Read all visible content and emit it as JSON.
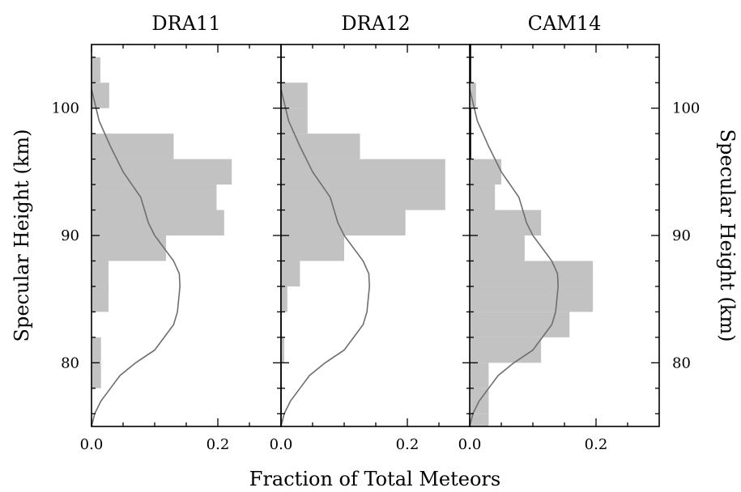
{
  "figure": {
    "xlabel": "Fraction of Total Meteors",
    "ylabel_left": "Specular Height (km)",
    "ylabel_right": "Specular Height (km)"
  },
  "chart_data": {
    "type": "bar",
    "orientation": "horizontal",
    "xlim": [
      0,
      0.3
    ],
    "ylim": [
      75,
      105
    ],
    "xticks": [
      0.0,
      0.2
    ],
    "xtick_labels": [
      "0.0",
      "0.2"
    ],
    "yticks": [
      80,
      90,
      100
    ],
    "ytick_labels": [
      "80",
      "90",
      "100"
    ],
    "bin_width_km": 2,
    "grid": false,
    "panels": [
      {
        "title": "DRA11",
        "histogram": [
          {
            "y0": 76,
            "y1": 78,
            "value": 0.0
          },
          {
            "y0": 78,
            "y1": 80,
            "value": 0.015
          },
          {
            "y0": 80,
            "y1": 82,
            "value": 0.015
          },
          {
            "y0": 82,
            "y1": 84,
            "value": 0.0
          },
          {
            "y0": 84,
            "y1": 86,
            "value": 0.027
          },
          {
            "y0": 86,
            "y1": 88,
            "value": 0.027
          },
          {
            "y0": 88,
            "y1": 90,
            "value": 0.118
          },
          {
            "y0": 90,
            "y1": 92,
            "value": 0.21
          },
          {
            "y0": 92,
            "y1": 94,
            "value": 0.198
          },
          {
            "y0": 94,
            "y1": 96,
            "value": 0.222
          },
          {
            "y0": 96,
            "y1": 98,
            "value": 0.13
          },
          {
            "y0": 98,
            "y1": 100,
            "value": 0.0
          },
          {
            "y0": 100,
            "y1": 102,
            "value": 0.028
          },
          {
            "y0": 102,
            "y1": 104,
            "value": 0.014
          }
        ],
        "model_curve": [
          {
            "x": 0.0,
            "y": 75
          },
          {
            "x": 0.005,
            "y": 76
          },
          {
            "x": 0.015,
            "y": 77
          },
          {
            "x": 0.03,
            "y": 78
          },
          {
            "x": 0.045,
            "y": 79
          },
          {
            "x": 0.07,
            "y": 80
          },
          {
            "x": 0.1,
            "y": 81
          },
          {
            "x": 0.13,
            "y": 83
          },
          {
            "x": 0.136,
            "y": 84
          },
          {
            "x": 0.14,
            "y": 86
          },
          {
            "x": 0.139,
            "y": 87
          },
          {
            "x": 0.13,
            "y": 88
          },
          {
            "x": 0.1,
            "y": 90
          },
          {
            "x": 0.09,
            "y": 91
          },
          {
            "x": 0.078,
            "y": 93
          },
          {
            "x": 0.05,
            "y": 95
          },
          {
            "x": 0.03,
            "y": 97
          },
          {
            "x": 0.012,
            "y": 99
          },
          {
            "x": 0.0,
            "y": 101.5
          }
        ]
      },
      {
        "title": "DRA12",
        "histogram": [
          {
            "y0": 76,
            "y1": 78,
            "value": 0.0
          },
          {
            "y0": 78,
            "y1": 80,
            "value": 0.0
          },
          {
            "y0": 80,
            "y1": 82,
            "value": 0.005
          },
          {
            "y0": 82,
            "y1": 84,
            "value": 0.0
          },
          {
            "y0": 84,
            "y1": 86,
            "value": 0.01
          },
          {
            "y0": 86,
            "y1": 88,
            "value": 0.03
          },
          {
            "y0": 88,
            "y1": 90,
            "value": 0.1
          },
          {
            "y0": 90,
            "y1": 92,
            "value": 0.197
          },
          {
            "y0": 92,
            "y1": 94,
            "value": 0.26
          },
          {
            "y0": 94,
            "y1": 96,
            "value": 0.26
          },
          {
            "y0": 96,
            "y1": 98,
            "value": 0.125
          },
          {
            "y0": 98,
            "y1": 100,
            "value": 0.042
          },
          {
            "y0": 100,
            "y1": 102,
            "value": 0.042
          },
          {
            "y0": 102,
            "y1": 104,
            "value": 0.0
          }
        ],
        "model_curve": [
          {
            "x": 0.0,
            "y": 75
          },
          {
            "x": 0.005,
            "y": 76
          },
          {
            "x": 0.015,
            "y": 77
          },
          {
            "x": 0.03,
            "y": 78
          },
          {
            "x": 0.045,
            "y": 79
          },
          {
            "x": 0.07,
            "y": 80
          },
          {
            "x": 0.1,
            "y": 81
          },
          {
            "x": 0.13,
            "y": 83
          },
          {
            "x": 0.136,
            "y": 84
          },
          {
            "x": 0.14,
            "y": 86
          },
          {
            "x": 0.139,
            "y": 87
          },
          {
            "x": 0.13,
            "y": 88
          },
          {
            "x": 0.1,
            "y": 90
          },
          {
            "x": 0.09,
            "y": 91
          },
          {
            "x": 0.078,
            "y": 93
          },
          {
            "x": 0.05,
            "y": 95
          },
          {
            "x": 0.03,
            "y": 97
          },
          {
            "x": 0.012,
            "y": 99
          },
          {
            "x": 0.0,
            "y": 101.5
          }
        ]
      },
      {
        "title": "CAM14",
        "histogram": [
          {
            "y0": 75,
            "y1": 76,
            "value": 0.03
          },
          {
            "y0": 76,
            "y1": 78,
            "value": 0.03
          },
          {
            "y0": 78,
            "y1": 80,
            "value": 0.03
          },
          {
            "y0": 80,
            "y1": 82,
            "value": 0.113
          },
          {
            "y0": 82,
            "y1": 84,
            "value": 0.158
          },
          {
            "y0": 84,
            "y1": 86,
            "value": 0.195
          },
          {
            "y0": 86,
            "y1": 88,
            "value": 0.195
          },
          {
            "y0": 88,
            "y1": 90,
            "value": 0.087
          },
          {
            "y0": 90,
            "y1": 92,
            "value": 0.113
          },
          {
            "y0": 92,
            "y1": 94,
            "value": 0.04
          },
          {
            "y0": 94,
            "y1": 96,
            "value": 0.05
          },
          {
            "y0": 96,
            "y1": 98,
            "value": 0.0
          },
          {
            "y0": 98,
            "y1": 100,
            "value": 0.0
          },
          {
            "y0": 100,
            "y1": 102,
            "value": 0.01
          },
          {
            "y0": 102,
            "y1": 104,
            "value": 0.0
          }
        ],
        "model_curve": [
          {
            "x": 0.0,
            "y": 75
          },
          {
            "x": 0.005,
            "y": 76
          },
          {
            "x": 0.015,
            "y": 77
          },
          {
            "x": 0.03,
            "y": 78
          },
          {
            "x": 0.045,
            "y": 79
          },
          {
            "x": 0.07,
            "y": 80
          },
          {
            "x": 0.1,
            "y": 81
          },
          {
            "x": 0.13,
            "y": 83
          },
          {
            "x": 0.136,
            "y": 84
          },
          {
            "x": 0.14,
            "y": 86
          },
          {
            "x": 0.139,
            "y": 87
          },
          {
            "x": 0.13,
            "y": 88
          },
          {
            "x": 0.1,
            "y": 90
          },
          {
            "x": 0.09,
            "y": 91
          },
          {
            "x": 0.078,
            "y": 93
          },
          {
            "x": 0.05,
            "y": 95
          },
          {
            "x": 0.03,
            "y": 97
          },
          {
            "x": 0.012,
            "y": 99
          },
          {
            "x": 0.0,
            "y": 101.5
          }
        ]
      }
    ],
    "colors": {
      "histogram": "#c2c2c2",
      "curve": "#6e6e6e",
      "axes": "#000000"
    }
  }
}
